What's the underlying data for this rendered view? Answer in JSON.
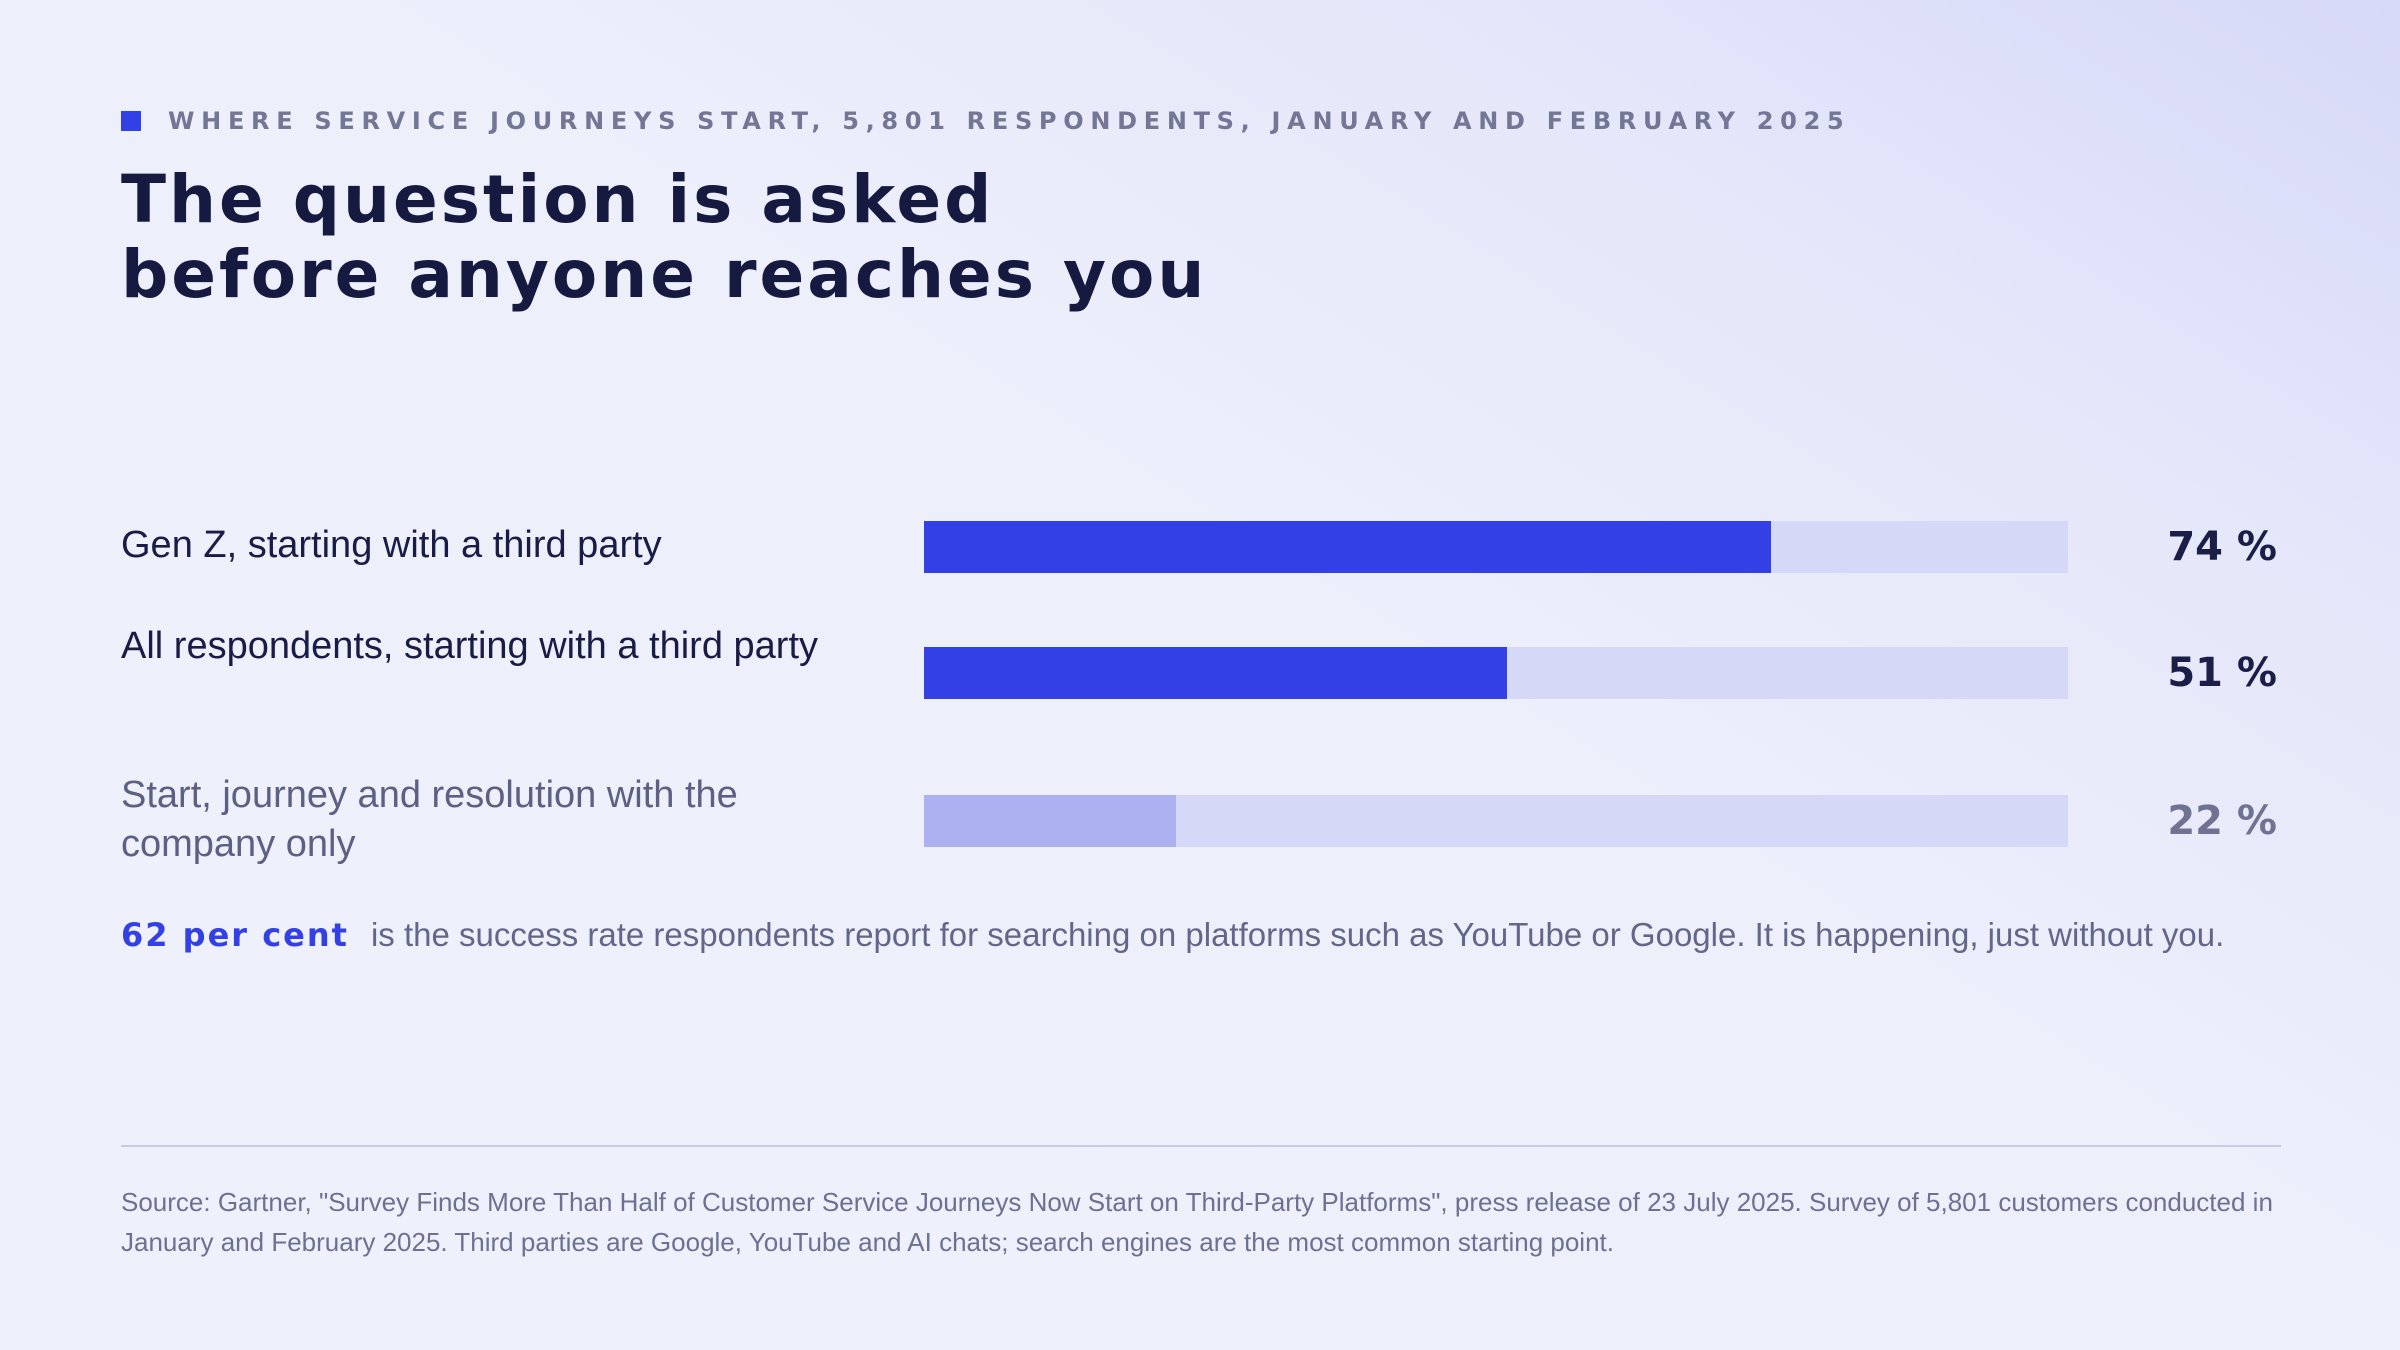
{
  "header": {
    "eyebrow": "WHERE SERVICE JOURNEYS START, 5,801 RESPONDENTS, JANUARY AND FEBRUARY 2025",
    "title_line1": "The question is asked",
    "title_line2": "before anyone reaches you"
  },
  "colors": {
    "accent": "#3340e6",
    "accent_light": "#abb1f1",
    "track": "#d5d8f6",
    "text_dark": "#161a40",
    "text_muted": "#62678a"
  },
  "chart_data": {
    "type": "bar",
    "orientation": "horizontal",
    "xlim": [
      0,
      100
    ],
    "unit": "%",
    "categories": [
      "Gen Z, starting with a third party",
      "All respondents, starting with a third party",
      "Start, journey and resolution with the company only"
    ],
    "values": [
      74,
      51,
      22
    ],
    "value_labels": [
      "74 %",
      "51 %",
      "22 %"
    ],
    "highlight": [
      true,
      true,
      false
    ]
  },
  "note": {
    "emphasis": "62 per cent",
    "text": "is the success rate respondents report for searching on platforms such as YouTube or Google. It is happening, just without you."
  },
  "source": "Source: Gartner, \"Survey Finds More Than Half of Customer Service Journeys Now Start on Third-Party Platforms\", press release of 23 July 2025. Survey of 5,801 customers conducted in January and February 2025. Third parties are Google, YouTube and AI chats; search engines are the most common starting point."
}
